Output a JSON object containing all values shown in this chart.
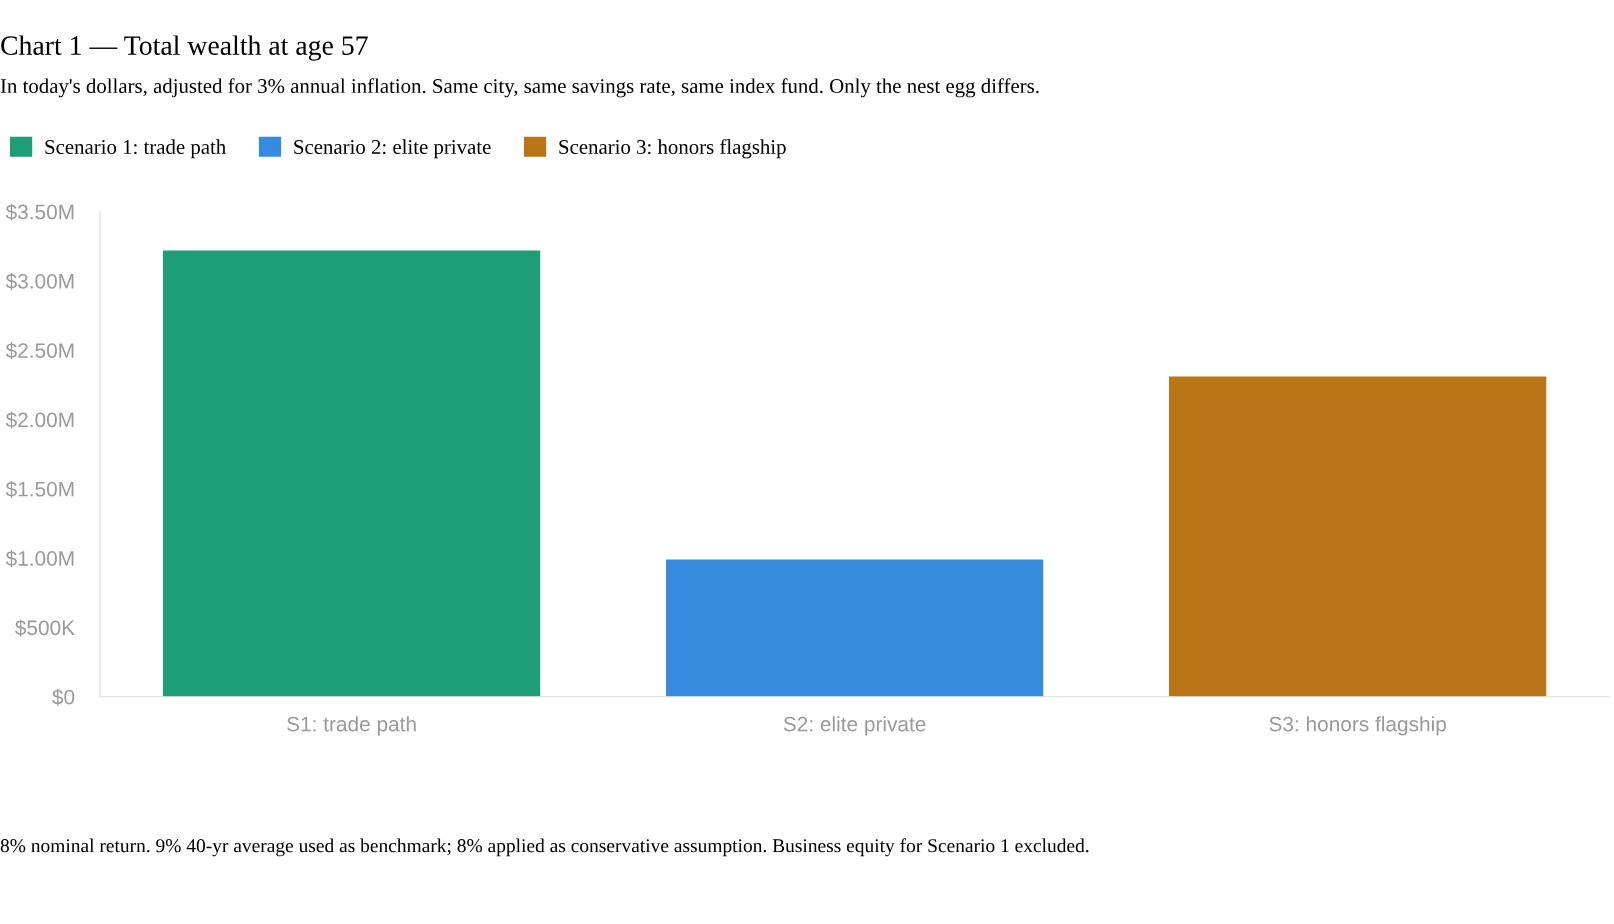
{
  "chart_data": {
    "type": "bar",
    "title": "Chart 1 — Total wealth at age 57",
    "subtitle": "In today's dollars, adjusted for 3% annual inflation. Same city, same savings rate, same index fund. Only the nest egg differs.",
    "categories": [
      "S1: trade path",
      "S2: elite private",
      "S3: honors flagship"
    ],
    "series": [
      {
        "name": "Scenario 1: trade path",
        "color": "#1e9e75",
        "values": [
          3220000,
          null,
          null
        ]
      },
      {
        "name": "Scenario 2: elite private",
        "color": "#378ade",
        "values": [
          null,
          990000,
          null
        ]
      },
      {
        "name": "Scenario 3: honors flagship",
        "color": "#ba7517",
        "values": [
          null,
          null,
          2310000
        ]
      }
    ],
    "ylim": [
      0,
      3500000
    ],
    "yticks": [
      {
        "value": 0,
        "label": "$0"
      },
      {
        "value": 500000,
        "label": "$500K"
      },
      {
        "value": 1000000,
        "label": "$1.00M"
      },
      {
        "value": 1500000,
        "label": "$1.50M"
      },
      {
        "value": 2000000,
        "label": "$2.00M"
      },
      {
        "value": 2500000,
        "label": "$2.50M"
      },
      {
        "value": 3000000,
        "label": "$3.00M"
      },
      {
        "value": 3500000,
        "label": "$3.50M"
      }
    ],
    "legend": "top left",
    "annotations": [
      "8% nominal return. 9% 40-yr average used as benchmark; 8% applied as conservative assumption. Business equity for Scenario 1 excluded."
    ]
  }
}
